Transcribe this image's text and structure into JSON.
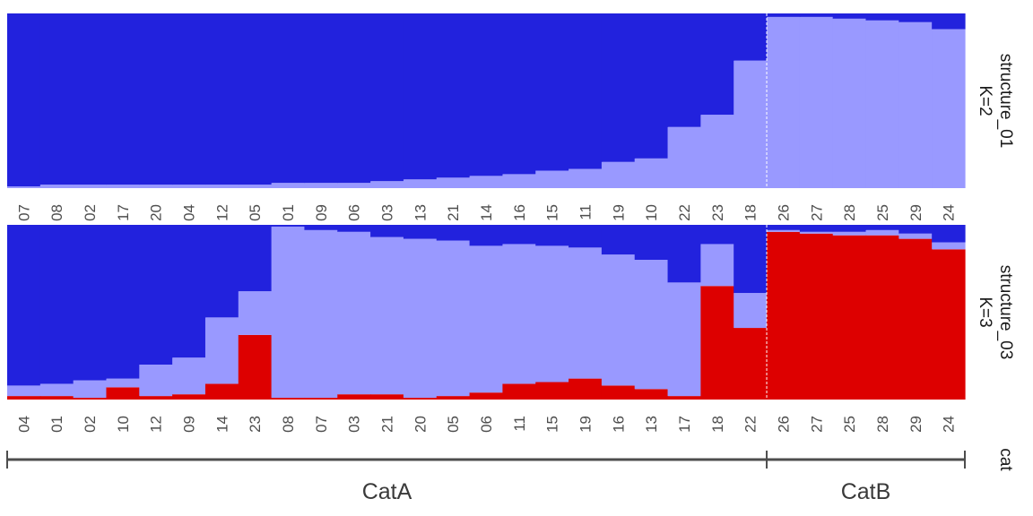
{
  "colors": {
    "k1": "#2222dd",
    "k2": "#9999ff",
    "k3": "#dd0000",
    "divider": "#ffffff",
    "axis": "#4d4d4d"
  },
  "chart_data": [
    {
      "type": "bar",
      "stacked": true,
      "strip_label": [
        "structure_01",
        "K=2"
      ],
      "ylim": [
        0,
        1
      ],
      "categories": [
        "07",
        "08",
        "02",
        "17",
        "20",
        "04",
        "12",
        "05",
        "01",
        "09",
        "06",
        "03",
        "13",
        "21",
        "14",
        "16",
        "15",
        "11",
        "19",
        "10",
        "22",
        "23",
        "18",
        "26",
        "27",
        "28",
        "25",
        "29",
        "24"
      ],
      "series": [
        {
          "color_key": "k2",
          "values": [
            0.01,
            0.02,
            0.02,
            0.02,
            0.02,
            0.02,
            0.02,
            0.02,
            0.03,
            0.03,
            0.03,
            0.04,
            0.05,
            0.06,
            0.07,
            0.08,
            0.1,
            0.11,
            0.15,
            0.17,
            0.35,
            0.42,
            0.73,
            0.98,
            0.98,
            0.97,
            0.96,
            0.95,
            0.91
          ]
        },
        {
          "color_key": "k1",
          "values": [
            0.99,
            0.98,
            0.98,
            0.98,
            0.98,
            0.98,
            0.98,
            0.98,
            0.97,
            0.97,
            0.97,
            0.96,
            0.95,
            0.94,
            0.93,
            0.92,
            0.9,
            0.89,
            0.85,
            0.83,
            0.65,
            0.58,
            0.27,
            0.02,
            0.02,
            0.03,
            0.04,
            0.05,
            0.09
          ]
        }
      ]
    },
    {
      "type": "bar",
      "stacked": true,
      "strip_label": [
        "structure_03",
        "K=3"
      ],
      "ylim": [
        0,
        1
      ],
      "categories": [
        "04",
        "01",
        "02",
        "10",
        "12",
        "09",
        "14",
        "23",
        "08",
        "07",
        "03",
        "21",
        "20",
        "05",
        "06",
        "11",
        "15",
        "19",
        "16",
        "13",
        "17",
        "18",
        "22",
        "26",
        "27",
        "25",
        "28",
        "29",
        "24"
      ],
      "series": [
        {
          "color_key": "k3",
          "values": [
            0.02,
            0.02,
            0.01,
            0.07,
            0.02,
            0.03,
            0.09,
            0.37,
            0.01,
            0.01,
            0.03,
            0.03,
            0.01,
            0.02,
            0.04,
            0.09,
            0.1,
            0.12,
            0.08,
            0.06,
            0.02,
            0.65,
            0.41,
            0.96,
            0.95,
            0.94,
            0.94,
            0.92,
            0.86
          ]
        },
        {
          "color_key": "k2",
          "values": [
            0.06,
            0.07,
            0.1,
            0.05,
            0.18,
            0.21,
            0.38,
            0.25,
            0.98,
            0.96,
            0.93,
            0.9,
            0.91,
            0.89,
            0.84,
            0.8,
            0.78,
            0.75,
            0.75,
            0.74,
            0.65,
            0.24,
            0.2,
            0.01,
            0.01,
            0.02,
            0.03,
            0.03,
            0.04
          ]
        },
        {
          "color_key": "k1",
          "values": [
            0.92,
            0.91,
            0.89,
            0.88,
            0.8,
            0.76,
            0.53,
            0.38,
            0.01,
            0.03,
            0.04,
            0.07,
            0.08,
            0.09,
            0.12,
            0.11,
            0.12,
            0.13,
            0.17,
            0.2,
            0.33,
            0.11,
            0.39,
            0.03,
            0.04,
            0.04,
            0.03,
            0.05,
            0.1
          ]
        }
      ]
    }
  ],
  "groups": {
    "strip_label": "cat",
    "items": [
      {
        "label": "CatA",
        "count": 23
      },
      {
        "label": "CatB",
        "count": 6
      }
    ]
  }
}
